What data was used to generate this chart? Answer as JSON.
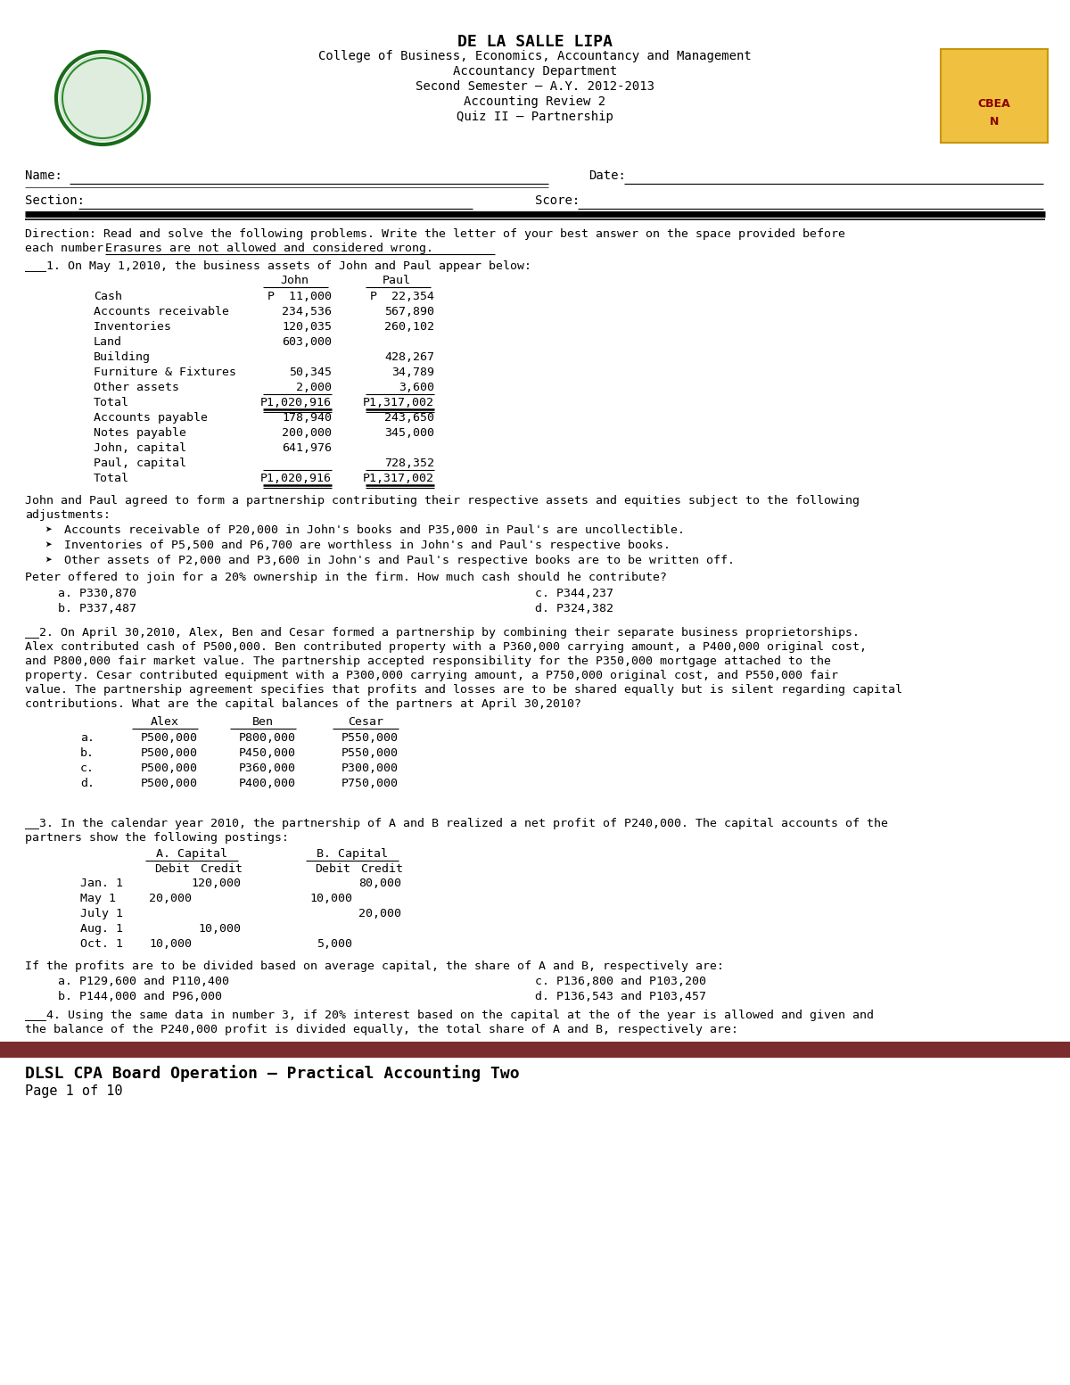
{
  "title": "DE LA SALLE LIPA",
  "subtitle_lines": [
    "College of Business, Economics, Accountancy and Management",
    "Accountancy Department",
    "Second Semester – A.Y. 2012-2013",
    "Accounting Review 2",
    "Quiz II – Partnership"
  ],
  "footer_bar_color": "#7B2C2C",
  "footer_text1": "DLSL CPA Board Operation – Practical Accounting Two",
  "footer_text2": "Page 1 of 10",
  "bg_color": "#FFFFFF"
}
